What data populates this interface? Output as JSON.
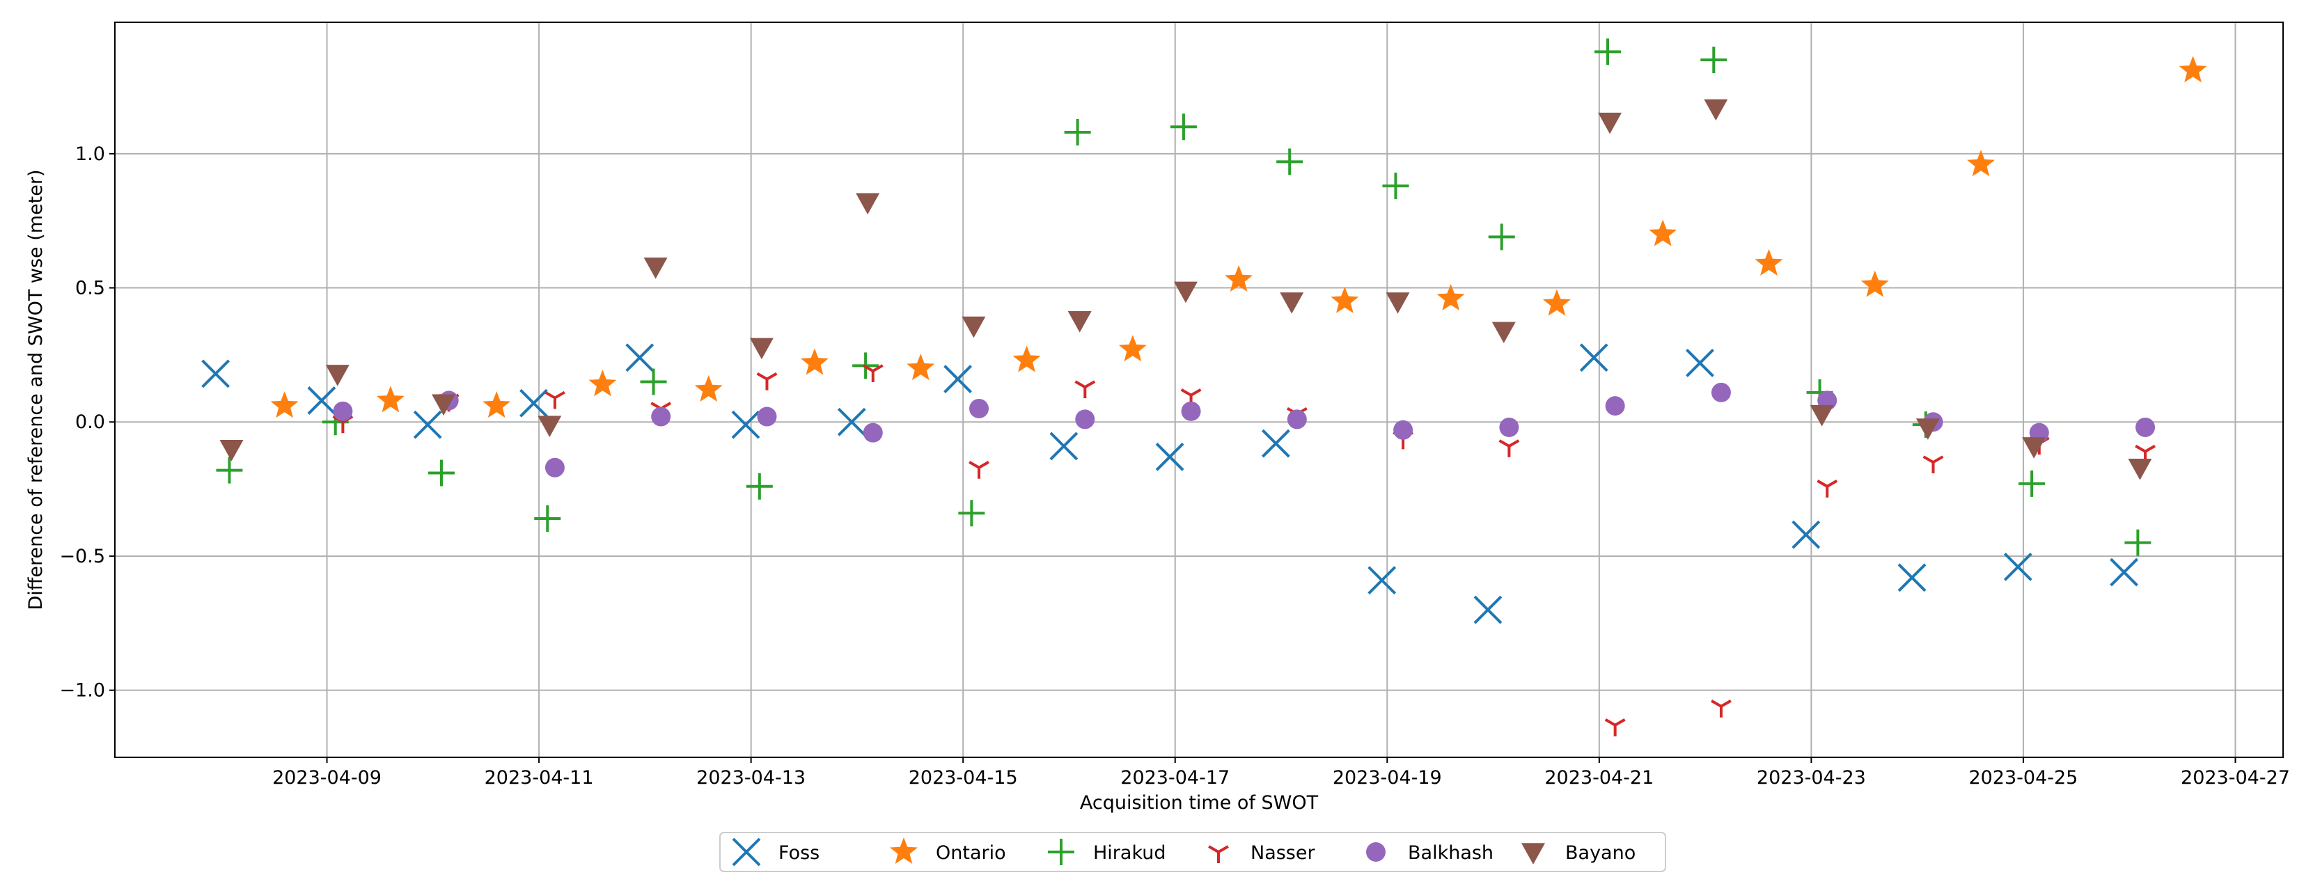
{
  "chart_data": {
    "type": "scatter",
    "title": "",
    "xlabel": "Acquisition time of SWOT",
    "ylabel": "Difference of reference and SWOT wse (meter)",
    "x_is_date": true,
    "xlim": [
      "2023-04-07",
      "2023-04-27.45"
    ],
    "ylim": [
      -1.25,
      1.49
    ],
    "xticks": [
      "2023-04-09",
      "2023-04-11",
      "2023-04-13",
      "2023-04-15",
      "2023-04-17",
      "2023-04-19",
      "2023-04-21",
      "2023-04-23",
      "2023-04-25",
      "2023-04-27"
    ],
    "yticks": [
      -1.0,
      -0.5,
      0.0,
      0.5,
      1.0
    ],
    "ytick_labels": [
      "−1.0",
      "−0.5",
      "0.0",
      "0.5",
      "1.0"
    ],
    "grid": true,
    "legend_position": "bottom-center",
    "series": [
      {
        "name": "Foss",
        "marker": "x",
        "color": "#1f77b4",
        "x": [
          "2023-04-08",
          "2023-04-09",
          "2023-04-10",
          "2023-04-11",
          "2023-04-12",
          "2023-04-13",
          "2023-04-14",
          "2023-04-15",
          "2023-04-16",
          "2023-04-17",
          "2023-04-18",
          "2023-04-19",
          "2023-04-20",
          "2023-04-21",
          "2023-04-22",
          "2023-04-23",
          "2023-04-24",
          "2023-04-25",
          "2023-04-26"
        ],
        "x_offset_days": -0.05,
        "values": [
          0.18,
          0.08,
          -0.01,
          0.07,
          0.24,
          -0.01,
          0.0,
          0.16,
          -0.09,
          -0.13,
          -0.08,
          -0.59,
          -0.7,
          0.24,
          0.22,
          -0.42,
          -0.58,
          -0.54,
          -0.56
        ]
      },
      {
        "name": "Ontario",
        "marker": "star",
        "color": "#ff7f0e",
        "x": [
          "2023-04-08",
          "2023-04-09",
          "2023-04-10",
          "2023-04-11",
          "2023-04-12",
          "2023-04-13",
          "2023-04-14",
          "2023-04-15",
          "2023-04-16",
          "2023-04-17",
          "2023-04-18",
          "2023-04-19",
          "2023-04-20",
          "2023-04-21",
          "2023-04-22",
          "2023-04-23",
          "2023-04-24",
          "2023-04-26"
        ],
        "x_offset_days": 0.6,
        "values": [
          0.06,
          0.08,
          0.06,
          0.14,
          0.12,
          0.22,
          0.2,
          0.23,
          0.27,
          0.53,
          0.45,
          0.46,
          0.44,
          0.7,
          0.59,
          0.51,
          0.96,
          1.31
        ]
      },
      {
        "name": "Hirakud",
        "marker": "plus",
        "color": "#2ca02c",
        "x": [
          "2023-04-08",
          "2023-04-09",
          "2023-04-10",
          "2023-04-11",
          "2023-04-12",
          "2023-04-13",
          "2023-04-14",
          "2023-04-15",
          "2023-04-16",
          "2023-04-17",
          "2023-04-18",
          "2023-04-19",
          "2023-04-20",
          "2023-04-21",
          "2023-04-22",
          "2023-04-23",
          "2023-04-24",
          "2023-04-25",
          "2023-04-26"
        ],
        "x_offset_days": 0.08,
        "values": [
          -0.18,
          0.0,
          -0.19,
          -0.36,
          0.15,
          -0.24,
          0.21,
          -0.34,
          1.08,
          1.1,
          0.97,
          0.88,
          0.69,
          1.38,
          1.35,
          0.11,
          -0.01,
          -0.23,
          -0.45
        ]
      },
      {
        "name": "Nasser",
        "marker": "tri_down",
        "color": "#d62728",
        "x": [
          "2023-04-09",
          "2023-04-10",
          "2023-04-11",
          "2023-04-12",
          "2023-04-13",
          "2023-04-14",
          "2023-04-15",
          "2023-04-16",
          "2023-04-17",
          "2023-04-18",
          "2023-04-19",
          "2023-04-20",
          "2023-04-21",
          "2023-04-22",
          "2023-04-23",
          "2023-04-24",
          "2023-04-25",
          "2023-04-26"
        ],
        "x_offset_days": 0.15,
        "values": [
          0.0,
          0.08,
          0.09,
          0.05,
          0.16,
          0.19,
          -0.17,
          0.13,
          0.1,
          0.03,
          -0.06,
          -0.09,
          -1.13,
          -1.06,
          -0.24,
          -0.15,
          -0.08,
          -0.11
        ]
      },
      {
        "name": "Balkhash",
        "marker": "circle",
        "color": "#9467bd",
        "x": [
          "2023-04-09",
          "2023-04-10",
          "2023-04-11",
          "2023-04-12",
          "2023-04-13",
          "2023-04-14",
          "2023-04-15",
          "2023-04-16",
          "2023-04-17",
          "2023-04-18",
          "2023-04-19",
          "2023-04-20",
          "2023-04-21",
          "2023-04-22",
          "2023-04-23",
          "2023-04-24",
          "2023-04-25",
          "2023-04-26"
        ],
        "x_offset_days": 0.15,
        "values": [
          0.04,
          0.08,
          -0.17,
          0.02,
          0.02,
          -0.04,
          0.05,
          0.01,
          0.04,
          0.01,
          -0.03,
          -0.02,
          0.06,
          0.11,
          0.08,
          0.0,
          -0.04,
          -0.02
        ]
      },
      {
        "name": "Bayano",
        "marker": "triangle_down",
        "color": "#8c564b",
        "x": [
          "2023-04-08",
          "2023-04-09",
          "2023-04-10",
          "2023-04-11",
          "2023-04-12",
          "2023-04-13",
          "2023-04-14",
          "2023-04-15",
          "2023-04-16",
          "2023-04-17",
          "2023-04-18",
          "2023-04-19",
          "2023-04-20",
          "2023-04-21",
          "2023-04-22",
          "2023-04-23",
          "2023-04-24",
          "2023-04-25",
          "2023-04-26"
        ],
        "x_offset_days": 0.1,
        "values": [
          -0.1,
          0.18,
          0.07,
          -0.01,
          0.58,
          0.28,
          0.82,
          0.36,
          0.38,
          0.49,
          0.45,
          0.45,
          0.34,
          1.12,
          1.17,
          0.03,
          -0.02,
          -0.09,
          -0.17
        ]
      }
    ]
  }
}
